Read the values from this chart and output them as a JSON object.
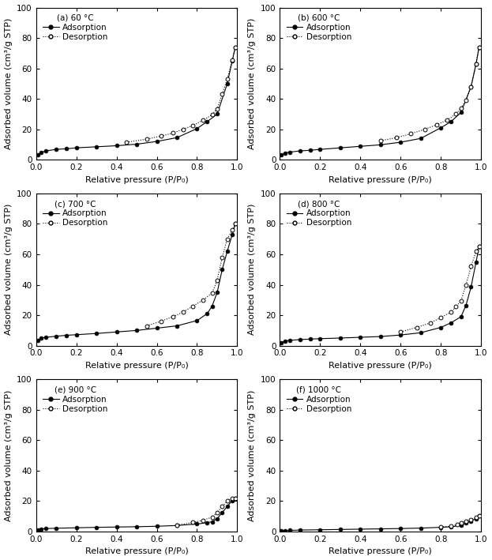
{
  "panels": [
    {
      "label": "(a) 60 °C",
      "adsorption": {
        "x": [
          0.008,
          0.025,
          0.05,
          0.1,
          0.15,
          0.2,
          0.3,
          0.4,
          0.5,
          0.6,
          0.7,
          0.8,
          0.85,
          0.9,
          0.95,
          0.975,
          0.99
        ],
        "y": [
          3.2,
          4.8,
          5.8,
          6.8,
          7.2,
          7.8,
          8.5,
          9.2,
          10.2,
          12.0,
          14.5,
          20.5,
          25.0,
          30.0,
          50.0,
          65.0,
          74.0
        ]
      },
      "desorption": {
        "x": [
          0.45,
          0.55,
          0.62,
          0.68,
          0.73,
          0.78,
          0.83,
          0.875,
          0.9,
          0.925,
          0.95,
          0.975,
          0.99
        ],
        "y": [
          11.5,
          13.5,
          15.5,
          17.5,
          20.0,
          22.5,
          26.0,
          29.5,
          33.5,
          43.0,
          53.0,
          65.5,
          74.0
        ]
      }
    },
    {
      "label": "(b) 600 °C",
      "adsorption": {
        "x": [
          0.008,
          0.025,
          0.05,
          0.1,
          0.15,
          0.2,
          0.3,
          0.4,
          0.5,
          0.6,
          0.7,
          0.8,
          0.85,
          0.9,
          0.95,
          0.975,
          0.99
        ],
        "y": [
          3.2,
          4.5,
          5.0,
          5.8,
          6.2,
          6.8,
          7.8,
          8.8,
          9.8,
          11.5,
          14.0,
          21.0,
          25.0,
          31.0,
          48.0,
          63.0,
          74.0
        ]
      },
      "desorption": {
        "x": [
          0.5,
          0.58,
          0.65,
          0.72,
          0.78,
          0.83,
          0.875,
          0.9,
          0.925,
          0.95,
          0.975,
          0.99
        ],
        "y": [
          12.5,
          14.5,
          17.0,
          20.0,
          23.0,
          26.0,
          30.0,
          34.0,
          39.0,
          48.0,
          63.0,
          74.0
        ]
      }
    },
    {
      "label": "(c) 700 °C",
      "adsorption": {
        "x": [
          0.008,
          0.025,
          0.05,
          0.1,
          0.15,
          0.2,
          0.3,
          0.4,
          0.5,
          0.6,
          0.7,
          0.8,
          0.85,
          0.875,
          0.9,
          0.925,
          0.95,
          0.975,
          0.99
        ],
        "y": [
          3.5,
          5.0,
          5.5,
          6.2,
          6.8,
          7.2,
          8.0,
          9.0,
          10.0,
          11.5,
          13.0,
          16.5,
          21.0,
          26.0,
          35.0,
          50.0,
          62.0,
          73.0,
          80.0
        ]
      },
      "desorption": {
        "x": [
          0.55,
          0.62,
          0.68,
          0.73,
          0.78,
          0.83,
          0.875,
          0.9,
          0.925,
          0.95,
          0.975,
          0.99
        ],
        "y": [
          13.0,
          16.0,
          19.0,
          22.0,
          26.0,
          30.0,
          34.5,
          43.0,
          58.0,
          70.0,
          76.0,
          80.0
        ]
      }
    },
    {
      "label": "(d) 800 °C",
      "adsorption": {
        "x": [
          0.008,
          0.025,
          0.05,
          0.1,
          0.15,
          0.2,
          0.3,
          0.4,
          0.5,
          0.6,
          0.7,
          0.8,
          0.85,
          0.9,
          0.925,
          0.95,
          0.975,
          0.99
        ],
        "y": [
          2.0,
          3.0,
          3.5,
          4.0,
          4.3,
          4.6,
          5.0,
          5.5,
          6.0,
          7.0,
          8.5,
          12.0,
          15.0,
          19.0,
          26.5,
          38.5,
          55.0,
          65.0
        ]
      },
      "desorption": {
        "x": [
          0.6,
          0.68,
          0.75,
          0.8,
          0.85,
          0.875,
          0.9,
          0.925,
          0.95,
          0.975,
          0.99
        ],
        "y": [
          9.0,
          12.0,
          15.0,
          18.5,
          22.0,
          25.5,
          29.5,
          40.0,
          52.0,
          62.0,
          65.0
        ]
      }
    },
    {
      "label": "(e) 900 °C",
      "adsorption": {
        "x": [
          0.008,
          0.025,
          0.05,
          0.1,
          0.2,
          0.3,
          0.4,
          0.5,
          0.6,
          0.7,
          0.8,
          0.85,
          0.875,
          0.9,
          0.925,
          0.95,
          0.975,
          0.99
        ],
        "y": [
          1.2,
          1.8,
          2.0,
          2.2,
          2.5,
          2.8,
          3.0,
          3.2,
          3.5,
          4.0,
          5.0,
          5.8,
          6.5,
          8.5,
          12.5,
          16.5,
          20.5,
          22.0
        ]
      },
      "desorption": {
        "x": [
          0.7,
          0.78,
          0.83,
          0.875,
          0.9,
          0.925,
          0.95,
          0.975,
          0.99
        ],
        "y": [
          4.2,
          6.0,
          7.5,
          9.5,
          12.5,
          16.5,
          20.0,
          22.0,
          22.0
        ]
      }
    },
    {
      "label": "(f) 1000 °C",
      "adsorption": {
        "x": [
          0.008,
          0.025,
          0.05,
          0.1,
          0.2,
          0.3,
          0.4,
          0.5,
          0.6,
          0.7,
          0.8,
          0.85,
          0.9,
          0.925,
          0.95,
          0.975,
          0.99
        ],
        "y": [
          0.4,
          0.6,
          0.8,
          1.0,
          1.2,
          1.4,
          1.6,
          1.8,
          2.0,
          2.3,
          2.8,
          3.2,
          4.0,
          5.5,
          7.0,
          8.5,
          10.5
        ]
      },
      "desorption": {
        "x": [
          0.8,
          0.85,
          0.88,
          0.9,
          0.925,
          0.95,
          0.975,
          0.99
        ],
        "y": [
          3.0,
          3.5,
          4.5,
          5.5,
          7.0,
          8.0,
          9.2,
          10.5
        ]
      }
    }
  ],
  "ylim": [
    0,
    100
  ],
  "xlim": [
    0.0,
    1.0
  ],
  "ylabel": "Adsorbed volume (cm³/g STP)",
  "xlabel": "Relative pressure (P/P₀)",
  "yticks": [
    0,
    20,
    40,
    60,
    80,
    100
  ],
  "xticks": [
    0.0,
    0.2,
    0.4,
    0.6,
    0.8,
    1.0
  ],
  "figsize": [
    6.23,
    7.09
  ],
  "dpi": 100,
  "label_fontsize": 8,
  "tick_fontsize": 7.5,
  "legend_fontsize": 7.5
}
